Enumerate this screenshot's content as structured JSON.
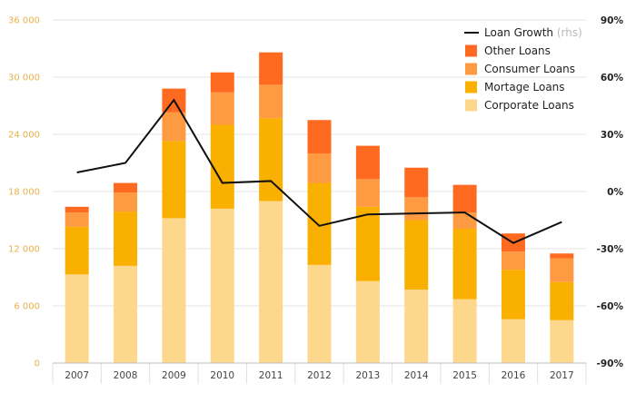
{
  "chart_data": {
    "type": "bar",
    "stacked": true,
    "categories": [
      "2007",
      "2008",
      "2009",
      "2010",
      "2011",
      "2012",
      "2013",
      "2014",
      "2015",
      "2016",
      "2017"
    ],
    "series": [
      {
        "name": "Corporate Loans",
        "color": "#fdd88c",
        "values": [
          9300,
          10200,
          15200,
          16200,
          17000,
          10300,
          8600,
          7700,
          6700,
          4600,
          4500
        ]
      },
      {
        "name": "Mortage Loans",
        "color": "#f9b000",
        "values": [
          5000,
          5700,
          8100,
          8800,
          8700,
          8600,
          7800,
          7300,
          7400,
          5200,
          4000
        ]
      },
      {
        "name": "Consumer Loans",
        "color": "#fd9a42",
        "values": [
          1500,
          2000,
          3000,
          3400,
          3500,
          3100,
          2900,
          2400,
          1700,
          1900,
          2500
        ]
      },
      {
        "name": "Other Loans",
        "color": "#ff6a21",
        "values": [
          600,
          1000,
          2500,
          2100,
          3400,
          3500,
          3500,
          3100,
          2900,
          1900,
          500
        ]
      }
    ],
    "line_series": {
      "name": "Loan Growth",
      "suffix": "(rhs)",
      "color": "#111111",
      "axis": "right",
      "values": [
        10,
        15,
        48,
        4.5,
        5.5,
        -18,
        -12,
        -11.5,
        -11,
        -27,
        -16
      ]
    },
    "ylim": [
      0,
      36000
    ],
    "yticks": [
      0,
      6000,
      12000,
      18000,
      24000,
      30000,
      36000
    ],
    "ytick_labels": [
      "0",
      "6 000",
      "12 000",
      "18 000",
      "24 000",
      "30 000",
      "36 000"
    ],
    "y2lim": [
      -90,
      90
    ],
    "y2ticks": [
      -90,
      -60,
      -30,
      0,
      30,
      60,
      90
    ],
    "y2tick_labels": [
      "-90%",
      "-60%",
      "-30%",
      "0%",
      "30%",
      "60%",
      "90%"
    ],
    "title": "",
    "xlabel": "",
    "ylabel": "",
    "legend": [
      {
        "label": "Loan Growth",
        "suffix": "(rhs)",
        "kind": "line",
        "color": "#111111"
      },
      {
        "label": "Other Loans",
        "kind": "box",
        "color": "#ff6a21"
      },
      {
        "label": "Consumer Loans",
        "kind": "box",
        "color": "#fd9a42"
      },
      {
        "label": "Mortage Loans",
        "kind": "box",
        "color": "#f9b000"
      },
      {
        "label": "Corporate Loans",
        "kind": "box",
        "color": "#fdd88c"
      }
    ],
    "legend_position": "top-right",
    "grid": true
  }
}
